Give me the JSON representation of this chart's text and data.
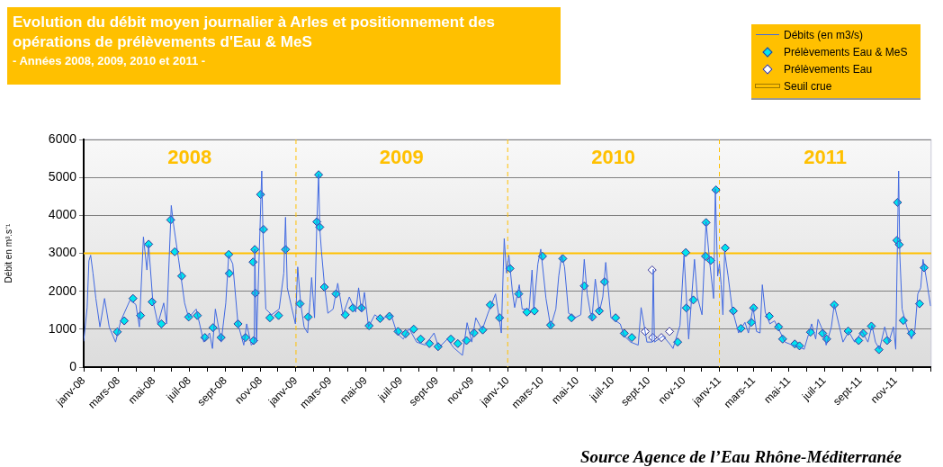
{
  "chart_data": {
    "type": "line",
    "title": "Evolution du débit moyen journalier à Arles et positionnement des opérations de prélèvements d'Eau & MeS",
    "subtitle": "- Années 2008, 2009, 2010 et 2011 -",
    "ylabel": "Débit en m³.s⁻¹",
    "series": [
      {
        "name": "Débits (en m3/s)",
        "color": "#4169e1",
        "marker": "none",
        "x": [
          "2008-01-01",
          "2008-01-07",
          "2008-01-10",
          "2008-01-13",
          "2008-01-17",
          "2008-01-22",
          "2008-01-29",
          "2008-02-06",
          "2008-02-14",
          "2008-02-25",
          "2008-03-05",
          "2008-03-21",
          "2008-03-31",
          "2008-04-06",
          "2008-04-13",
          "2008-04-19",
          "2008-04-22",
          "2008-04-29",
          "2008-05-08",
          "2008-05-18",
          "2008-05-23",
          "2008-05-31",
          "2008-06-04",
          "2008-06-13",
          "2008-06-23",
          "2008-06-30",
          "2008-07-13",
          "2008-07-26",
          "2008-08-05",
          "2008-08-10",
          "2008-08-15",
          "2008-08-25",
          "2008-09-02",
          "2008-09-07",
          "2008-09-14",
          "2008-09-23",
          "2008-10-03",
          "2008-10-08",
          "2008-10-16",
          "2008-10-21",
          "2008-10-22",
          "2008-10-25",
          "2008-11-03",
          "2008-11-05",
          "2008-11-10",
          "2008-11-20",
          "2008-12-03",
          "2008-12-11",
          "2008-12-14",
          "2008-12-17",
          "2008-12-24",
          "2008-12-31",
          "2009-01-04",
          "2009-01-09",
          "2009-01-15",
          "2009-01-21",
          "2009-01-25",
          "2009-01-28",
          "2009-02-02",
          "2009-02-06",
          "2009-02-09",
          "2009-02-11",
          "2009-02-14",
          "2009-02-19",
          "2009-02-25",
          "2009-03-06",
          "2009-03-14",
          "2009-03-23",
          "2009-04-03",
          "2009-04-14",
          "2009-04-19",
          "2009-04-24",
          "2009-04-29",
          "2009-05-06",
          "2009-05-17",
          "2009-05-27",
          "2009-06-14",
          "2009-06-24",
          "2009-07-05",
          "2009-07-15",
          "2009-07-28",
          "2009-08-12",
          "2009-08-27",
          "2009-09-04",
          "2009-09-19",
          "2009-09-30",
          "2009-10-15",
          "2009-10-23",
          "2009-10-31",
          "2009-11-07",
          "2009-11-18",
          "2009-11-28",
          "2009-12-11",
          "2009-12-21",
          "2009-12-26",
          "2009-12-30",
          "2010-01-03",
          "2010-01-09",
          "2010-01-13",
          "2010-01-21",
          "2010-01-26",
          "2010-02-07",
          "2010-02-12",
          "2010-02-15",
          "2010-02-22",
          "2010-02-27",
          "2010-03-08",
          "2010-03-16",
          "2010-03-25",
          "2010-03-30",
          "2010-04-04",
          "2010-04-09",
          "2010-04-16",
          "2010-04-27",
          "2010-05-07",
          "2010-05-13",
          "2010-05-18",
          "2010-05-26",
          "2010-06-01",
          "2010-06-08",
          "2010-06-14",
          "2010-06-19",
          "2010-06-28",
          "2010-07-14",
          "2010-07-21",
          "2010-08-01",
          "2010-08-14",
          "2010-08-19",
          "2010-08-29",
          "2010-09-07",
          "2010-09-09",
          "2010-09-11",
          "2010-09-26",
          "2010-10-09",
          "2010-10-13",
          "2010-10-25",
          "2010-11-01",
          "2010-11-09",
          "2010-11-14",
          "2010-11-19",
          "2010-11-24",
          "2010-12-02",
          "2010-12-09",
          "2010-12-15",
          "2010-12-22",
          "2010-12-25",
          "2010-12-29",
          "2011-01-01",
          "2011-01-04",
          "2011-01-07",
          "2011-01-10",
          "2011-01-16",
          "2011-01-23",
          "2011-02-03",
          "2011-02-14",
          "2011-02-20",
          "2011-02-28",
          "2011-03-06",
          "2011-03-12",
          "2011-03-16",
          "2011-03-21",
          "2011-03-29",
          "2011-04-06",
          "2011-04-14",
          "2011-04-24",
          "2011-05-07",
          "2011-05-17",
          "2011-05-27",
          "2011-06-09",
          "2011-06-16",
          "2011-06-20",
          "2011-06-30",
          "2011-07-04",
          "2011-07-13",
          "2011-07-18",
          "2011-07-27",
          "2011-08-02",
          "2011-08-12",
          "2011-08-22",
          "2011-09-04",
          "2011-09-14",
          "2011-09-21",
          "2011-09-27",
          "2011-10-04",
          "2011-10-13",
          "2011-10-20",
          "2011-10-28",
          "2011-11-01",
          "2011-11-04",
          "2011-11-06",
          "2011-11-08",
          "2011-11-12",
          "2011-11-20",
          "2011-11-28",
          "2011-12-04",
          "2011-12-09",
          "2011-12-14",
          "2011-12-18",
          "2011-12-23",
          "2011-12-31"
        ],
        "values": [
          680,
          1570,
          2800,
          2950,
          2480,
          1810,
          1060,
          1810,
          1060,
          660,
          1220,
          1770,
          1650,
          1060,
          3430,
          2560,
          3230,
          1770,
          1140,
          1690,
          1140,
          4260,
          3750,
          2800,
          1690,
          1300,
          1530,
          660,
          900,
          490,
          1530,
          660,
          1690,
          2950,
          2720,
          1140,
          580,
          1140,
          580,
          660,
          3110,
          660,
          5170,
          3590,
          1530,
          1380,
          1530,
          2480,
          3950,
          2090,
          1610,
          1140,
          2640,
          1690,
          1060,
          900,
          1690,
          2360,
          1300,
          3830,
          5090,
          3670,
          3040,
          2170,
          1420,
          1530,
          2210,
          1380,
          1850,
          1450,
          2090,
          1450,
          1970,
          1060,
          1380,
          1260,
          1380,
          900,
          740,
          1020,
          660,
          580,
          900,
          510,
          740,
          510,
          310,
          1170,
          660,
          1300,
          980,
          1420,
          1930,
          900,
          3390,
          2480,
          2950,
          2010,
          1570,
          2170,
          1530,
          1530,
          2560,
          1530,
          2720,
          3110,
          1810,
          1060,
          1530,
          2400,
          2950,
          2640,
          1420,
          1300,
          1380,
          2840,
          1930,
          1220,
          2320,
          1450,
          1850,
          2760,
          1300,
          1140,
          820,
          660,
          580,
          1570,
          660,
          660,
          2580,
          660,
          820,
          580,
          490,
          1100,
          2950,
          740,
          1810,
          2840,
          1850,
          1380,
          3830,
          2800,
          1810,
          4700,
          2400,
          2720,
          2170,
          1380,
          3040,
          2400,
          1530,
          900,
          1180,
          900,
          1570,
          940,
          900,
          2170,
          1450,
          1140,
          1220,
          980,
          660,
          580,
          550,
          470,
          1140,
          740,
          1260,
          900,
          580,
          1060,
          1650,
          1060,
          660,
          940,
          660,
          940,
          660,
          1100,
          660,
          470,
          1060,
          660,
          1060,
          470,
          3350,
          5170,
          2950,
          1530,
          1060,
          740,
          980,
          1930,
          2090,
          2840,
          2400,
          1610
        ]
      },
      {
        "name": "Prélèvements Eau & MeS",
        "type": "scatter",
        "color": "#00e5ee",
        "marker": "diamond",
        "x": [
          "2008-02-28",
          "2008-03-11",
          "2008-03-26",
          "2008-04-08",
          "2008-04-22",
          "2008-04-28",
          "2008-05-14",
          "2008-05-30",
          "2008-06-06",
          "2008-06-18",
          "2008-06-30",
          "2008-07-15",
          "2008-07-28",
          "2008-08-11",
          "2008-08-25",
          "2008-09-07",
          "2008-09-08",
          "2008-09-23",
          "2008-10-06",
          "2008-10-20",
          "2008-10-19",
          "2008-10-22",
          "2008-10-23",
          "2008-11-01",
          "2008-11-06",
          "2008-11-17",
          "2008-12-02",
          "2008-12-14",
          "2009-01-08",
          "2009-01-22",
          "2009-02-06",
          "2009-02-09",
          "2009-02-11",
          "2009-02-19",
          "2009-03-11",
          "2009-03-27",
          "2009-04-09",
          "2009-04-24",
          "2009-05-07",
          "2009-05-26",
          "2009-06-11",
          "2009-06-26",
          "2009-07-09",
          "2009-07-23",
          "2009-08-04",
          "2009-08-19",
          "2009-09-03",
          "2009-09-25",
          "2009-10-07",
          "2009-10-22",
          "2009-11-04",
          "2009-11-19",
          "2009-12-02",
          "2009-12-18",
          "2010-01-05",
          "2010-01-20",
          "2010-02-03",
          "2010-02-16",
          "2010-03-02",
          "2010-03-16",
          "2010-04-06",
          "2010-04-21",
          "2010-05-13",
          "2010-05-27",
          "2010-06-08",
          "2010-06-17",
          "2010-07-06",
          "2010-07-21",
          "2010-08-03",
          "2010-10-21",
          "2010-11-04",
          "2010-11-05",
          "2010-11-17",
          "2010-12-09",
          "2010-12-08",
          "2010-12-17",
          "2010-12-26",
          "2011-01-11",
          "2011-01-25",
          "2011-02-07",
          "2011-02-25",
          "2011-03-01",
          "2011-03-28",
          "2011-04-13",
          "2011-04-20",
          "2011-05-11",
          "2011-05-19",
          "2011-06-07",
          "2011-06-28",
          "2011-07-05",
          "2011-07-18",
          "2011-08-11",
          "2011-08-29",
          "2011-09-06",
          "2011-09-20",
          "2011-10-03",
          "2011-10-17",
          "2011-11-04",
          "2011-11-03",
          "2011-11-07",
          "2011-11-14",
          "2011-11-28",
          "2011-12-12",
          "2011-12-20"
        ],
        "values": [
          930,
          1220,
          1810,
          1360,
          3240,
          1720,
          1140,
          3880,
          3040,
          2400,
          1320,
          1360,
          780,
          1040,
          780,
          2970,
          2470,
          1140,
          780,
          700,
          2770,
          3100,
          1950,
          4550,
          3630,
          1300,
          1360,
          3100,
          1670,
          1320,
          3830,
          5070,
          3690,
          2110,
          1930,
          1380,
          1560,
          1560,
          1090,
          1280,
          1340,
          940,
          880,
          1000,
          740,
          620,
          540,
          740,
          620,
          700,
          900,
          980,
          1640,
          1300,
          2600,
          1930,
          1450,
          1480,
          2920,
          1110,
          2860,
          1300,
          2140,
          1320,
          1480,
          2250,
          1300,
          890,
          780,
          660,
          3020,
          1560,
          1770,
          3810,
          2920,
          2810,
          4670,
          3140,
          1480,
          1020,
          1180,
          1560,
          1340,
          1060,
          740,
          610,
          560,
          920,
          890,
          740,
          1640,
          950,
          700,
          890,
          1080,
          460,
          700,
          4340,
          3340,
          3230,
          1230,
          890,
          1670,
          2620
        ]
      },
      {
        "name": "Prélèvements Eau",
        "type": "scatter",
        "color": "#ffffff",
        "marker": "diamond",
        "x": [
          "2010-08-26",
          "2010-09-07",
          "2010-09-08",
          "2010-09-23",
          "2010-10-07"
        ],
        "values": [
          940,
          2560,
          780,
          780,
          940
        ]
      }
    ],
    "xlim": [
      "2008-01-01",
      "2012-01-01"
    ],
    "xticks": [
      {
        "value": "2008-01-01",
        "label": "janv-08"
      },
      {
        "value": "2008-02-01",
        "label": null
      },
      {
        "value": "2008-03-01",
        "label": "mars-08"
      },
      {
        "value": "2008-04-01",
        "label": null
      },
      {
        "value": "2008-05-01",
        "label": "mai-08"
      },
      {
        "value": "2008-06-01",
        "label": null
      },
      {
        "value": "2008-07-01",
        "label": "juil-08"
      },
      {
        "value": "2008-08-01",
        "label": null
      },
      {
        "value": "2008-09-01",
        "label": "sept-08"
      },
      {
        "value": "2008-10-01",
        "label": null
      },
      {
        "value": "2008-11-01",
        "label": "nov-08"
      },
      {
        "value": "2008-12-01",
        "label": null
      },
      {
        "value": "2009-01-01",
        "label": "janv-09"
      },
      {
        "value": "2009-02-01",
        "label": null
      },
      {
        "value": "2009-03-01",
        "label": "mars-09"
      },
      {
        "value": "2009-04-01",
        "label": null
      },
      {
        "value": "2009-05-01",
        "label": "mai-09"
      },
      {
        "value": "2009-06-01",
        "label": null
      },
      {
        "value": "2009-07-01",
        "label": "juil-09"
      },
      {
        "value": "2009-08-01",
        "label": null
      },
      {
        "value": "2009-09-01",
        "label": "sept-09"
      },
      {
        "value": "2009-10-01",
        "label": null
      },
      {
        "value": "2009-11-01",
        "label": "nov-09"
      },
      {
        "value": "2009-12-01",
        "label": null
      },
      {
        "value": "2010-01-01",
        "label": "janv-10"
      },
      {
        "value": "2010-02-01",
        "label": null
      },
      {
        "value": "2010-03-01",
        "label": "mars-10"
      },
      {
        "value": "2010-04-01",
        "label": null
      },
      {
        "value": "2010-05-01",
        "label": "mai-10"
      },
      {
        "value": "2010-06-01",
        "label": null
      },
      {
        "value": "2010-07-01",
        "label": "juil-10"
      },
      {
        "value": "2010-08-01",
        "label": null
      },
      {
        "value": "2010-09-01",
        "label": "sept-10"
      },
      {
        "value": "2010-10-01",
        "label": null
      },
      {
        "value": "2010-11-01",
        "label": "nov-10"
      },
      {
        "value": "2010-12-01",
        "label": null
      },
      {
        "value": "2011-01-01",
        "label": "janv-11"
      },
      {
        "value": "2011-02-01",
        "label": null
      },
      {
        "value": "2011-03-01",
        "label": "mars-11"
      },
      {
        "value": "2011-04-01",
        "label": null
      },
      {
        "value": "2011-05-01",
        "label": "mai-11"
      },
      {
        "value": "2011-06-01",
        "label": null
      },
      {
        "value": "2011-07-01",
        "label": "juil-11"
      },
      {
        "value": "2011-08-01",
        "label": null
      },
      {
        "value": "2011-09-01",
        "label": "sept-11"
      },
      {
        "value": "2011-10-01",
        "label": null
      },
      {
        "value": "2011-11-01",
        "label": "nov-11"
      },
      {
        "value": "2011-12-01",
        "label": null
      },
      {
        "value": "2012-01-01",
        "label": null
      }
    ],
    "ylim": [
      0,
      6000
    ],
    "yticks": [
      0,
      1000,
      2000,
      3000,
      4000,
      5000,
      6000
    ],
    "grid": "y",
    "legend": "top right",
    "ref_lines": [
      {
        "axis": "y",
        "value": 3000,
        "label": "Seuil crue",
        "color": "#ffc000",
        "line_style": "solid"
      },
      {
        "axis": "x",
        "value": "2009-01-01",
        "color": "#ffc000",
        "line_style": "dashed"
      },
      {
        "axis": "x",
        "value": "2010-01-01",
        "color": "#ffc000",
        "line_style": "dashed"
      },
      {
        "axis": "x",
        "value": "2011-01-01",
        "color": "#ffc000",
        "line_style": "dashed"
      }
    ],
    "annotations": [
      "2008",
      "2009",
      "2010",
      "2011",
      "Source Agence de l’Eau Rhône-Méditerranée"
    ]
  }
}
